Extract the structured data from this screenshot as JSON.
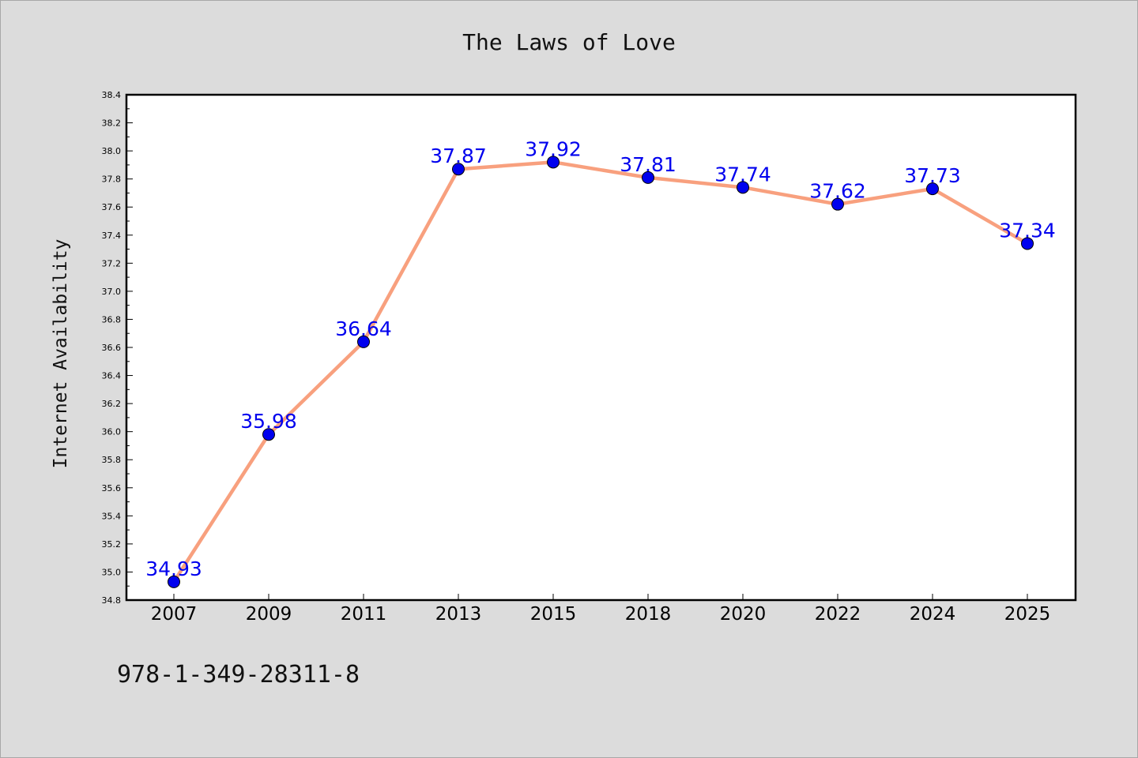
{
  "colors": {
    "background": "#dcdcdc",
    "plot_background": "#ffffff",
    "line": "#f8a07e",
    "marker": "#0000ee",
    "data_label": "#0000ee",
    "axis": "#000000"
  },
  "footer_text": "978-1-349-28311-8",
  "chart_data": {
    "type": "line",
    "title": "The Laws of Love",
    "xlabel": "",
    "ylabel": "Internet Availability",
    "categories": [
      "2007",
      "2009",
      "2011",
      "2013",
      "2015",
      "2018",
      "2020",
      "2022",
      "2024",
      "2025"
    ],
    "series": [
      {
        "values": [
          34.93,
          35.98,
          36.64,
          37.87,
          37.92,
          37.81,
          37.74,
          37.62,
          37.73,
          37.34
        ],
        "labels": [
          "34.93",
          "35.98",
          "36.64",
          "37.87",
          "37.92",
          "37.81",
          "37.74",
          "37.62",
          "37.73",
          "37.34"
        ],
        "marker": "circle"
      }
    ],
    "ylim": [
      34.8,
      38.4
    ],
    "yticks": [
      "34.8",
      "35.0",
      "35.2",
      "35.4",
      "35.6",
      "35.8",
      "36.0",
      "36.2",
      "36.4",
      "36.6",
      "36.8",
      "37.0",
      "37.2",
      "37.4",
      "37.6",
      "37.8",
      "38.0",
      "38.2",
      "38.4"
    ],
    "grid": false,
    "legend": "none"
  }
}
